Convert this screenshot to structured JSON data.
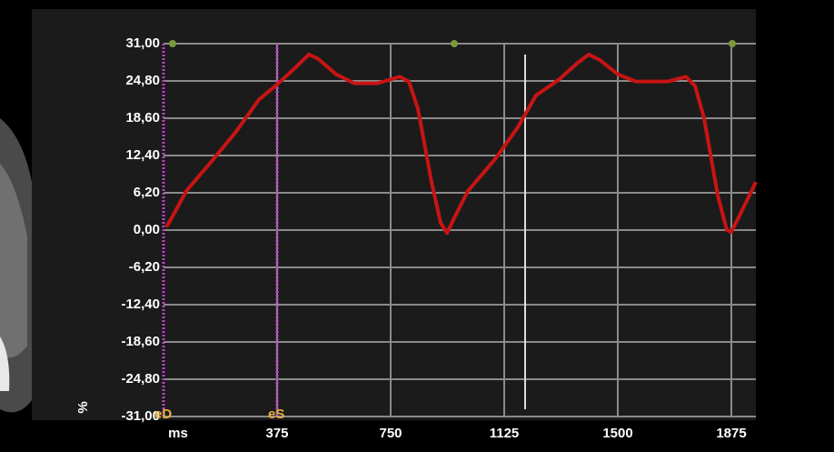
{
  "chart_data": {
    "type": "line",
    "x_label": "ms",
    "y_label": "%",
    "xlim": [
      0,
      1956
    ],
    "ylim": [
      -31,
      31
    ],
    "xticks": [
      375,
      750,
      1125,
      1500,
      1875
    ],
    "yticks": [
      {
        "value": 31,
        "label": "31,00"
      },
      {
        "value": 24.8,
        "label": "24,80"
      },
      {
        "value": 18.6,
        "label": "18,60"
      },
      {
        "value": 12.4,
        "label": "12,40"
      },
      {
        "value": 6.2,
        "label": "6,20"
      },
      {
        "value": 0,
        "label": "0,00"
      },
      {
        "value": -6.2,
        "label": "-6,20"
      },
      {
        "value": -12.4,
        "label": "-12,40"
      },
      {
        "value": -18.6,
        "label": "-18,60"
      },
      {
        "value": -24.8,
        "label": "-24,80"
      },
      {
        "value": -31,
        "label": "-31,00"
      }
    ],
    "grid": true,
    "events": [
      {
        "label": "eD",
        "x": 0
      },
      {
        "label": "eS",
        "x": 375
      }
    ],
    "event_color": "#c040d0",
    "top_markers": [
      30,
      960,
      1878
    ],
    "top_marker_color": "#7a9a3a",
    "cursor": 1194,
    "series": [
      {
        "color": "#c81414",
        "x": [
          9,
          30,
          75,
          165,
          240,
          315,
          375,
          435,
          480,
          510,
          570,
          630,
          705,
          780,
          810,
          840,
          885,
          915,
          936,
          960,
          1005,
          1095,
          1170,
          1230,
          1305,
          1365,
          1404,
          1440,
          1500,
          1560,
          1665,
          1725,
          1755,
          1785,
          1830,
          1860,
          1875,
          1905,
          1956
        ],
        "values": [
          0.5,
          2.3,
          6.5,
          11.8,
          16.4,
          21.7,
          24.2,
          27,
          29.2,
          28.5,
          25.9,
          24.4,
          24.4,
          25.5,
          24.7,
          20.2,
          8,
          1.2,
          -0.5,
          2,
          6.5,
          11.8,
          17.1,
          22.4,
          25,
          27.7,
          29.2,
          28.3,
          25.9,
          24.7,
          24.7,
          25.5,
          24,
          18.6,
          5.8,
          0,
          -0.3,
          2.7,
          8
        ]
      }
    ]
  }
}
